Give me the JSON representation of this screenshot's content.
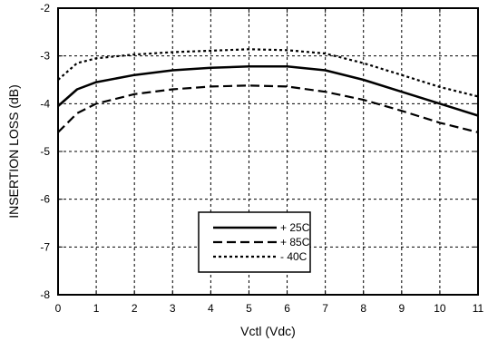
{
  "chart_data": {
    "type": "line",
    "xlabel": "Vctl (Vdc)",
    "ylabel": "INSERTION LOSS (dB)",
    "xlim": [
      0,
      11
    ],
    "ylim": [
      -8,
      -2
    ],
    "x_ticks": [
      0,
      1,
      2,
      3,
      4,
      5,
      6,
      7,
      8,
      9,
      10,
      11
    ],
    "y_ticks": [
      -8,
      -7,
      -6,
      -5,
      -4,
      -3,
      -2
    ],
    "grid": true,
    "legend_position": "bottom-center",
    "x": [
      0,
      0.5,
      1,
      2,
      3,
      4,
      5,
      6,
      7,
      8,
      9,
      10,
      11
    ],
    "series": [
      {
        "name": "+ 25C",
        "style": "solid",
        "values": [
          -4.05,
          -3.7,
          -3.55,
          -3.4,
          -3.3,
          -3.25,
          -3.22,
          -3.22,
          -3.3,
          -3.5,
          -3.75,
          -4.0,
          -4.25
        ]
      },
      {
        "name": "+ 85C",
        "style": "dashed",
        "values": [
          -4.6,
          -4.2,
          -4.0,
          -3.8,
          -3.7,
          -3.64,
          -3.62,
          -3.64,
          -3.75,
          -3.92,
          -4.15,
          -4.4,
          -4.6
        ]
      },
      {
        "name": "- 40C",
        "style": "dotted",
        "values": [
          -3.5,
          -3.15,
          -3.05,
          -2.97,
          -2.92,
          -2.89,
          -2.86,
          -2.88,
          -2.95,
          -3.15,
          -3.4,
          -3.65,
          -3.85
        ]
      }
    ]
  }
}
